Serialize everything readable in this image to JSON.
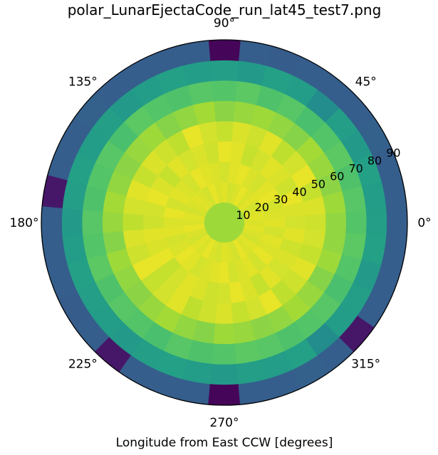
{
  "chart_data": {
    "type": "heatmap",
    "title": "polar_LunarEjectaCode_run_lat45_test7.png",
    "xlabel": "Longitude from East CCW [degrees]",
    "angular_tick_labels": [
      "0°",
      "45°",
      "90°",
      "135°",
      "180°",
      "225°",
      "270°",
      "315°"
    ],
    "radial_tick_labels": [
      "10",
      "20",
      "30",
      "40",
      "50",
      "60",
      "70",
      "80",
      "90"
    ],
    "rlim": [
      0,
      90
    ],
    "theta_bin_count": 36,
    "theta_bin_width_deg": 10,
    "radial_bin_edges": [
      0,
      10,
      20,
      30,
      40,
      50,
      60,
      70,
      80,
      90
    ],
    "colormap": "viridis",
    "value_range": [
      0,
      1
    ],
    "rings": [
      [
        0.86,
        0.86,
        0.86,
        0.86,
        0.86,
        0.86,
        0.86,
        0.86,
        0.86,
        0.86,
        0.86,
        0.86,
        0.86,
        0.86,
        0.86,
        0.86,
        0.86,
        0.86,
        0.86,
        0.86,
        0.86,
        0.86,
        0.86,
        0.86,
        0.86,
        0.86,
        0.86,
        0.86,
        0.86,
        0.86,
        0.86,
        0.86,
        0.86,
        0.86,
        0.86,
        0.86
      ],
      [
        0.95,
        0.96,
        0.95,
        0.94,
        0.96,
        0.95,
        0.97,
        0.95,
        0.94,
        0.96,
        0.95,
        0.97,
        0.94,
        0.95,
        0.96,
        0.95,
        0.94,
        0.96,
        0.95,
        0.97,
        0.95,
        0.94,
        0.96,
        0.95,
        0.97,
        0.95,
        0.94,
        0.96,
        0.95,
        0.94,
        0.97,
        0.95,
        0.96,
        0.94,
        0.95,
        0.96
      ],
      [
        0.96,
        0.95,
        0.94,
        0.97,
        0.96,
        0.94,
        0.95,
        0.97,
        0.96,
        0.94,
        0.95,
        0.96,
        0.97,
        0.94,
        0.95,
        0.96,
        0.94,
        0.97,
        0.95,
        0.96,
        0.94,
        0.95,
        0.97,
        0.96,
        0.94,
        0.95,
        0.96,
        0.97,
        0.94,
        0.95,
        0.96,
        0.94,
        0.97,
        0.95,
        0.96,
        0.94
      ],
      [
        0.94,
        0.95,
        0.97,
        0.93,
        0.95,
        0.96,
        0.94,
        0.92,
        0.96,
        0.97,
        0.93,
        0.95,
        0.94,
        0.96,
        0.92,
        0.95,
        0.97,
        0.94,
        0.93,
        0.96,
        0.95,
        0.97,
        0.92,
        0.94,
        0.96,
        0.95,
        0.93,
        0.94,
        0.97,
        0.95,
        0.92,
        0.96,
        0.94,
        0.95,
        0.93,
        0.96
      ],
      [
        0.93,
        0.95,
        0.92,
        0.97,
        0.94,
        0.91,
        0.96,
        0.93,
        0.95,
        0.92,
        0.94,
        0.97,
        0.91,
        0.93,
        0.95,
        0.92,
        0.96,
        0.94,
        0.91,
        0.95,
        0.93,
        0.97,
        0.92,
        0.94,
        0.96,
        0.91,
        0.93,
        0.95,
        0.92,
        0.94,
        0.97,
        0.91,
        0.93,
        0.96,
        0.92,
        0.94
      ],
      [
        0.84,
        0.86,
        0.83,
        0.85,
        0.87,
        0.82,
        0.84,
        0.86,
        0.85,
        0.83,
        0.87,
        0.84,
        0.82,
        0.86,
        0.85,
        0.83,
        0.84,
        0.87,
        0.85,
        0.82,
        0.86,
        0.84,
        0.83,
        0.85,
        0.87,
        0.84,
        0.82,
        0.86,
        0.85,
        0.83,
        0.84,
        0.87,
        0.85,
        0.82,
        0.86,
        0.84
      ],
      [
        0.73,
        0.74,
        0.72,
        0.75,
        0.73,
        0.71,
        0.74,
        0.72,
        0.75,
        0.73,
        0.74,
        0.72,
        0.73,
        0.75,
        0.71,
        0.74,
        0.73,
        0.72,
        0.74,
        0.73,
        0.75,
        0.72,
        0.74,
        0.73,
        0.71,
        0.74,
        0.72,
        0.73,
        0.75,
        0.74,
        0.72,
        0.73,
        0.74,
        0.71,
        0.73,
        0.75
      ],
      [
        0.56,
        0.55,
        0.57,
        0.54,
        0.56,
        0.48,
        0.55,
        0.57,
        0.54,
        0.56,
        0.55,
        0.57,
        0.55,
        0.54,
        0.56,
        0.55,
        0.57,
        0.56,
        0.54,
        0.55,
        0.57,
        0.56,
        0.55,
        0.54,
        0.56,
        0.57,
        0.55,
        0.54,
        0.56,
        0.55,
        0.57,
        0.48,
        0.55,
        0.56,
        0.54,
        0.57
      ],
      [
        0.3,
        0.3,
        0.3,
        0.31,
        0.3,
        0.3,
        0.3,
        0.29,
        0.3,
        0.02,
        0.3,
        0.3,
        0.3,
        0.3,
        0.31,
        0.3,
        0.3,
        0.08,
        0.3,
        0.3,
        0.3,
        0.29,
        0.3,
        0.08,
        0.3,
        0.3,
        0.3,
        0.02,
        0.3,
        0.3,
        0.31,
        0.3,
        0.08,
        0.3,
        0.3,
        0.3
      ]
    ],
    "grid": false
  }
}
